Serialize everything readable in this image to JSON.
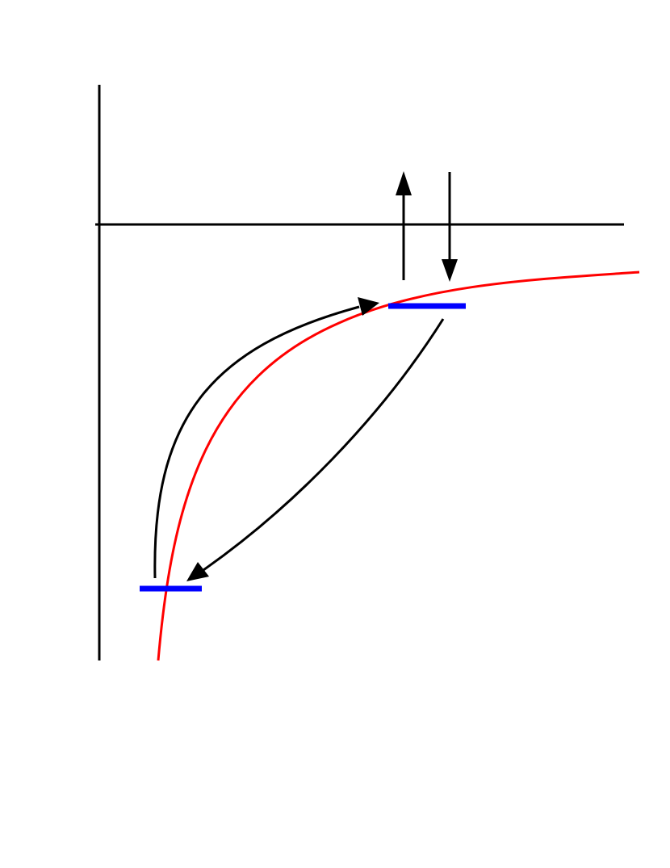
{
  "diagram": {
    "colors": {
      "background": "#ffffff",
      "axes": "#000000",
      "curve": "#ff0000",
      "levels": "#0000ff",
      "arrows": "#000000"
    },
    "elements": {
      "axes": [
        "vertical-axis",
        "horizontal-axis"
      ],
      "curve": "potential-energy-curve",
      "levels": [
        "upper-level",
        "lower-level"
      ],
      "arrows": [
        "up-arrow",
        "down-arrow",
        "transition-arrow-up",
        "transition-arrow-down"
      ]
    }
  }
}
